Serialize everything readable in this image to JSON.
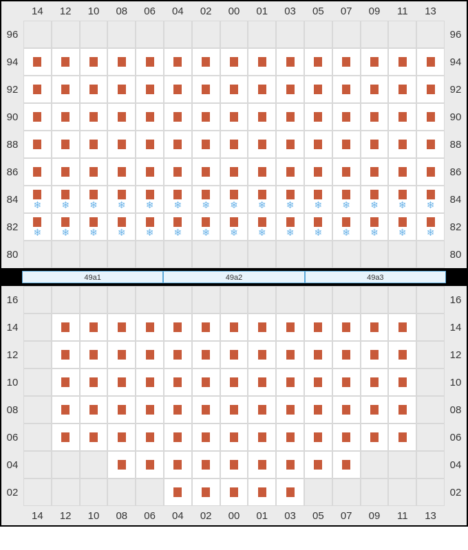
{
  "colors": {
    "marker": "#c85a3a",
    "snowflake": "#6bb3e8",
    "empty_bg": "#ebebeb",
    "filled_bg": "#ffffff",
    "grid_line": "#d8d8d8",
    "rack_bg": "#e8f4fc",
    "rack_border": "#5aa8d8",
    "text": "#333333"
  },
  "columns": [
    "14",
    "12",
    "10",
    "08",
    "06",
    "04",
    "02",
    "00",
    "01",
    "03",
    "05",
    "07",
    "09",
    "11",
    "13"
  ],
  "upper": {
    "rows": [
      "96",
      "94",
      "92",
      "90",
      "88",
      "86",
      "84",
      "82",
      "80"
    ],
    "grid": [
      {
        "r": "96",
        "cells": [
          "e",
          "e",
          "e",
          "e",
          "e",
          "e",
          "e",
          "e",
          "e",
          "e",
          "e",
          "e",
          "e",
          "e",
          "e"
        ]
      },
      {
        "r": "94",
        "cells": [
          "m",
          "m",
          "m",
          "m",
          "m",
          "m",
          "m",
          "m",
          "m",
          "m",
          "m",
          "m",
          "m",
          "m",
          "m"
        ]
      },
      {
        "r": "92",
        "cells": [
          "m",
          "m",
          "m",
          "m",
          "m",
          "m",
          "m",
          "m",
          "m",
          "m",
          "m",
          "m",
          "m",
          "m",
          "m"
        ]
      },
      {
        "r": "90",
        "cells": [
          "m",
          "m",
          "m",
          "m",
          "m",
          "m",
          "m",
          "m",
          "m",
          "m",
          "m",
          "m",
          "m",
          "m",
          "m"
        ]
      },
      {
        "r": "88",
        "cells": [
          "m",
          "m",
          "m",
          "m",
          "m",
          "m",
          "m",
          "m",
          "m",
          "m",
          "m",
          "m",
          "m",
          "m",
          "m"
        ]
      },
      {
        "r": "86",
        "cells": [
          "m",
          "m",
          "m",
          "m",
          "m",
          "m",
          "m",
          "m",
          "m",
          "m",
          "m",
          "m",
          "m",
          "m",
          "m"
        ]
      },
      {
        "r": "84",
        "cells": [
          "ms",
          "ms",
          "ms",
          "ms",
          "ms",
          "ms",
          "ms",
          "ms",
          "ms",
          "ms",
          "ms",
          "ms",
          "ms",
          "ms",
          "ms"
        ]
      },
      {
        "r": "82",
        "cells": [
          "ms",
          "ms",
          "ms",
          "ms",
          "ms",
          "ms",
          "ms",
          "ms",
          "ms",
          "ms",
          "ms",
          "ms",
          "ms",
          "ms",
          "ms"
        ]
      },
      {
        "r": "80",
        "cells": [
          "e",
          "e",
          "e",
          "e",
          "e",
          "e",
          "e",
          "e",
          "e",
          "e",
          "e",
          "e",
          "e",
          "e",
          "e"
        ]
      }
    ]
  },
  "racks": [
    "49a1",
    "49a2",
    "49a3"
  ],
  "lower": {
    "rows": [
      "16",
      "14",
      "12",
      "10",
      "08",
      "06",
      "04",
      "02"
    ],
    "grid": [
      {
        "r": "16",
        "cells": [
          "e",
          "e",
          "e",
          "e",
          "e",
          "e",
          "e",
          "e",
          "e",
          "e",
          "e",
          "e",
          "e",
          "e",
          "e"
        ]
      },
      {
        "r": "14",
        "cells": [
          "e",
          "m",
          "m",
          "m",
          "m",
          "m",
          "m",
          "m",
          "m",
          "m",
          "m",
          "m",
          "m",
          "m",
          "e"
        ]
      },
      {
        "r": "12",
        "cells": [
          "e",
          "m",
          "m",
          "m",
          "m",
          "m",
          "m",
          "m",
          "m",
          "m",
          "m",
          "m",
          "m",
          "m",
          "e"
        ]
      },
      {
        "r": "10",
        "cells": [
          "e",
          "m",
          "m",
          "m",
          "m",
          "m",
          "m",
          "m",
          "m",
          "m",
          "m",
          "m",
          "m",
          "m",
          "e"
        ]
      },
      {
        "r": "08",
        "cells": [
          "e",
          "m",
          "m",
          "m",
          "m",
          "m",
          "m",
          "m",
          "m",
          "m",
          "m",
          "m",
          "m",
          "m",
          "e"
        ]
      },
      {
        "r": "06",
        "cells": [
          "e",
          "m",
          "m",
          "m",
          "m",
          "m",
          "m",
          "m",
          "m",
          "m",
          "m",
          "m",
          "m",
          "m",
          "e"
        ]
      },
      {
        "r": "04",
        "cells": [
          "e",
          "e",
          "e",
          "m",
          "m",
          "m",
          "m",
          "m",
          "m",
          "m",
          "m",
          "m",
          "e",
          "e",
          "e"
        ]
      },
      {
        "r": "02",
        "cells": [
          "e",
          "e",
          "e",
          "e",
          "e",
          "m",
          "m",
          "m",
          "m",
          "m",
          "e",
          "e",
          "e",
          "e",
          "e"
        ]
      }
    ]
  }
}
